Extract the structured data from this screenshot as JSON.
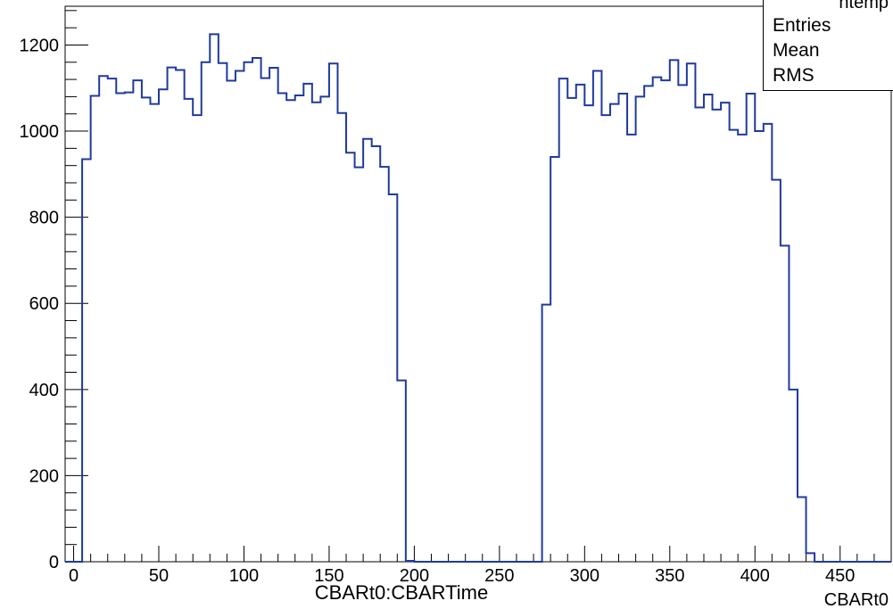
{
  "chart_data": {
    "type": "histogram",
    "title": "CBARt0:CBARTime",
    "xlabel": "CBARt0",
    "ylabel": "",
    "xlim": [
      -5,
      480
    ],
    "ylim": [
      0,
      1290
    ],
    "x_ticks": [
      "0",
      "50",
      "100",
      "150",
      "200",
      "250",
      "300",
      "350",
      "400",
      "450"
    ],
    "y_ticks": [
      "0",
      "200",
      "400",
      "600",
      "800",
      "1000",
      "1200"
    ],
    "bin_width": 5,
    "bins": [
      {
        "x0": 5,
        "y": 935
      },
      {
        "x0": 10,
        "y": 1082
      },
      {
        "x0": 15,
        "y": 1128
      },
      {
        "x0": 20,
        "y": 1122
      },
      {
        "x0": 25,
        "y": 1088
      },
      {
        "x0": 30,
        "y": 1090
      },
      {
        "x0": 35,
        "y": 1118
      },
      {
        "x0": 40,
        "y": 1078
      },
      {
        "x0": 45,
        "y": 1063
      },
      {
        "x0": 50,
        "y": 1097
      },
      {
        "x0": 55,
        "y": 1148
      },
      {
        "x0": 60,
        "y": 1142
      },
      {
        "x0": 65,
        "y": 1075
      },
      {
        "x0": 70,
        "y": 1037
      },
      {
        "x0": 75,
        "y": 1160
      },
      {
        "x0": 80,
        "y": 1225
      },
      {
        "x0": 85,
        "y": 1158
      },
      {
        "x0": 90,
        "y": 1117
      },
      {
        "x0": 95,
        "y": 1140
      },
      {
        "x0": 100,
        "y": 1160
      },
      {
        "x0": 105,
        "y": 1170
      },
      {
        "x0": 110,
        "y": 1123
      },
      {
        "x0": 115,
        "y": 1147
      },
      {
        "x0": 120,
        "y": 1088
      },
      {
        "x0": 125,
        "y": 1072
      },
      {
        "x0": 130,
        "y": 1083
      },
      {
        "x0": 135,
        "y": 1110
      },
      {
        "x0": 140,
        "y": 1067
      },
      {
        "x0": 145,
        "y": 1080
      },
      {
        "x0": 150,
        "y": 1157
      },
      {
        "x0": 155,
        "y": 1042
      },
      {
        "x0": 160,
        "y": 950
      },
      {
        "x0": 165,
        "y": 916
      },
      {
        "x0": 170,
        "y": 982
      },
      {
        "x0": 175,
        "y": 965
      },
      {
        "x0": 180,
        "y": 917
      },
      {
        "x0": 185,
        "y": 853
      },
      {
        "x0": 190,
        "y": 421
      },
      {
        "x0": 195,
        "y": 2
      },
      {
        "x0": 275,
        "y": 597
      },
      {
        "x0": 280,
        "y": 940
      },
      {
        "x0": 285,
        "y": 1122
      },
      {
        "x0": 290,
        "y": 1077
      },
      {
        "x0": 295,
        "y": 1108
      },
      {
        "x0": 300,
        "y": 1060
      },
      {
        "x0": 305,
        "y": 1140
      },
      {
        "x0": 310,
        "y": 1037
      },
      {
        "x0": 315,
        "y": 1063
      },
      {
        "x0": 320,
        "y": 1087
      },
      {
        "x0": 325,
        "y": 992
      },
      {
        "x0": 330,
        "y": 1080
      },
      {
        "x0": 335,
        "y": 1105
      },
      {
        "x0": 340,
        "y": 1125
      },
      {
        "x0": 345,
        "y": 1118
      },
      {
        "x0": 350,
        "y": 1165
      },
      {
        "x0": 355,
        "y": 1107
      },
      {
        "x0": 360,
        "y": 1157
      },
      {
        "x0": 365,
        "y": 1055
      },
      {
        "x0": 370,
        "y": 1085
      },
      {
        "x0": 375,
        "y": 1050
      },
      {
        "x0": 380,
        "y": 1066
      },
      {
        "x0": 385,
        "y": 1003
      },
      {
        "x0": 390,
        "y": 992
      },
      {
        "x0": 395,
        "y": 1087
      },
      {
        "x0": 400,
        "y": 1000
      },
      {
        "x0": 405,
        "y": 1017
      },
      {
        "x0": 410,
        "y": 887
      },
      {
        "x0": 415,
        "y": 734
      },
      {
        "x0": 420,
        "y": 400
      },
      {
        "x0": 425,
        "y": 150
      },
      {
        "x0": 430,
        "y": 20
      }
    ],
    "grid": false,
    "line_color": "#1f3a9e"
  },
  "stats_box": {
    "title": "htemp",
    "entries_label": "Entries",
    "mean_label": "Mean",
    "rms_label": "RMS"
  }
}
